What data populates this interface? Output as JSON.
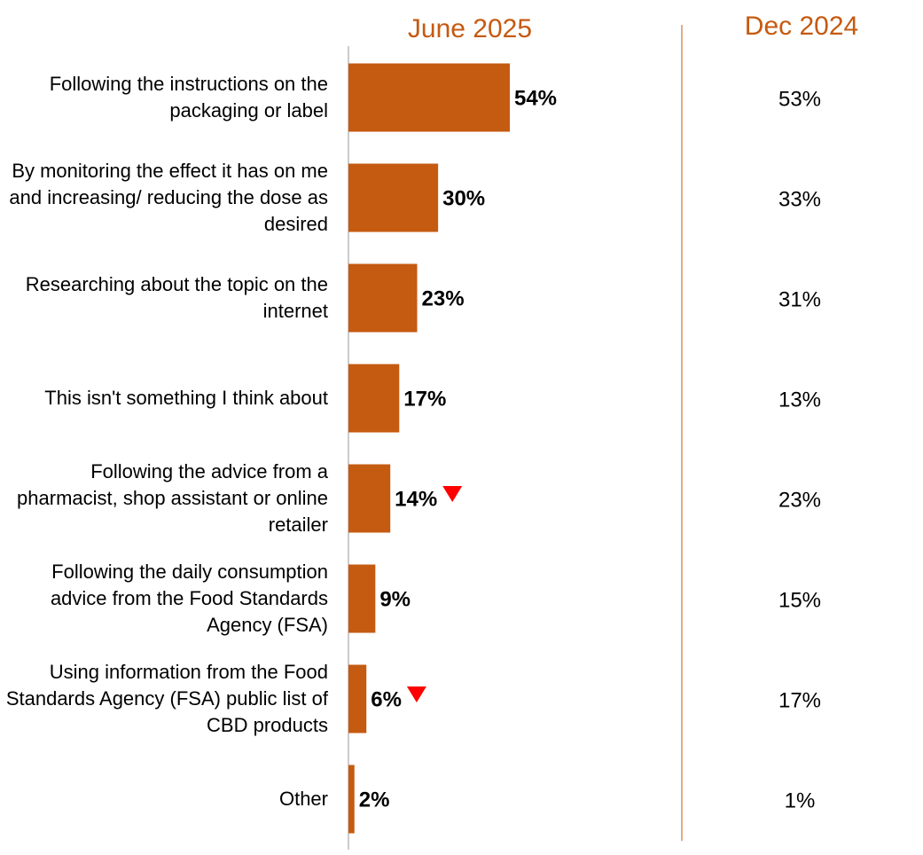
{
  "chart_data": {
    "type": "bar",
    "categories": [
      "Following the instructions on the packaging or label",
      "By monitoring the effect it has on me and increasing/ reducing the dose as desired",
      "Researching about the topic on the internet",
      "This isn't something I think about",
      "Following the advice from a pharmacist, shop assistant or online retailer",
      "Following the daily consumption advice from the Food Standards Agency (FSA)",
      "Using information from the Food Standards Agency (FSA) public list of CBD products",
      "Other"
    ],
    "series": [
      {
        "name": "June 2025",
        "color": "#c55a11",
        "values": [
          54,
          30,
          23,
          17,
          14,
          9,
          6,
          2
        ],
        "value_labels": [
          "54%",
          "30%",
          "23%",
          "17%",
          "14%",
          "9%",
          "6%",
          "2%"
        ],
        "significant_decrease": [
          false,
          false,
          false,
          false,
          true,
          false,
          true,
          false
        ]
      },
      {
        "name": "Dec 2024",
        "color": "#c55a11",
        "values": [
          53,
          33,
          31,
          13,
          23,
          15,
          17,
          1
        ],
        "value_labels": [
          "53%",
          "33%",
          "31%",
          "13%",
          "23%",
          "15%",
          "17%",
          "1%"
        ]
      }
    ],
    "xlim": [
      0,
      100
    ],
    "decrease_marker_color": "#ff0000"
  }
}
